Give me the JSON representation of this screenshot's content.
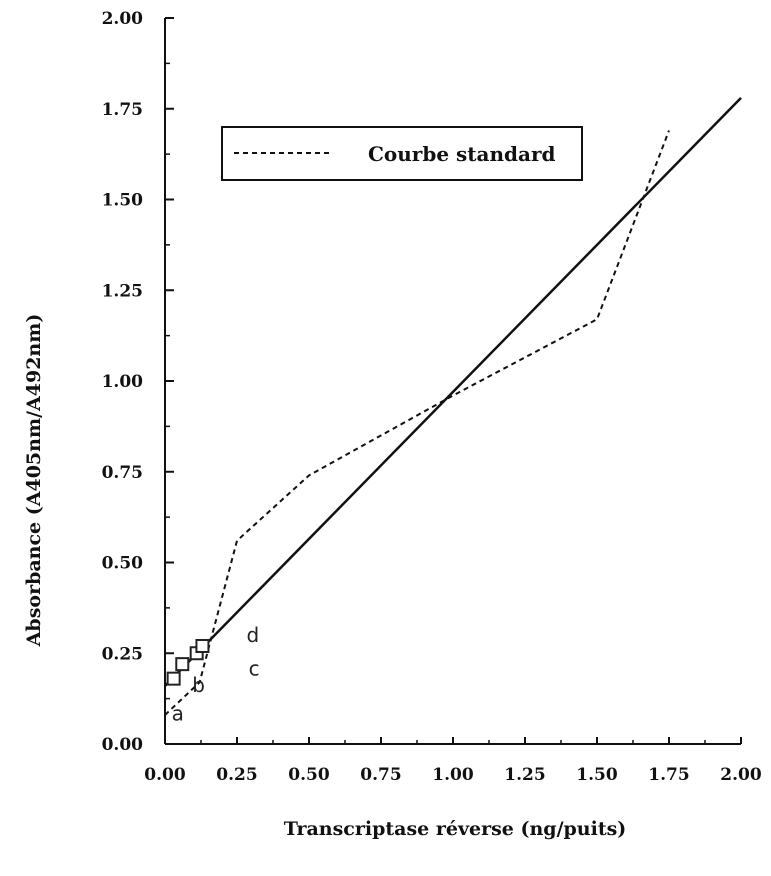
{
  "chart_data": {
    "type": "line",
    "xlabel": "Transcriptase réverse (ng/puits)",
    "ylabel": "Absorbance (A405nm/A492nm)",
    "xlim": [
      0,
      2
    ],
    "ylim": [
      0,
      2
    ],
    "x_ticks": [
      "0.00",
      "0.25",
      "0.50",
      "0.75",
      "1.00",
      "1.25",
      "1.50",
      "1.75",
      "2.00"
    ],
    "y_ticks": [
      "0.00",
      "0.25",
      "0.50",
      "0.75",
      "1.00",
      "1.25",
      "1.50",
      "1.75",
      "2.00"
    ],
    "legend": {
      "position": "top-center",
      "label": "Courbe standard"
    },
    "grid": false,
    "series": [
      {
        "name": "Courbe standard",
        "style": "dashed",
        "x": [
          0.0,
          0.12,
          0.25,
          0.5,
          1.0,
          1.5,
          1.75
        ],
        "y": [
          0.08,
          0.17,
          0.56,
          0.74,
          0.96,
          1.17,
          1.69
        ]
      },
      {
        "style": "solid",
        "x": [
          0.0,
          2.0
        ],
        "y": [
          0.16,
          1.78
        ]
      }
    ],
    "points": [
      {
        "label": "a",
        "x": 0.03,
        "y": 0.18
      },
      {
        "label": "b",
        "x": 0.06,
        "y": 0.22
      },
      {
        "label": "c",
        "x": 0.11,
        "y": 0.25
      },
      {
        "label": "d",
        "x": 0.13,
        "y": 0.27
      }
    ]
  }
}
